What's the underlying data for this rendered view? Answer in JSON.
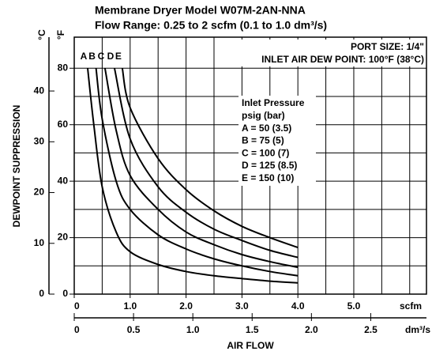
{
  "chart_data": {
    "type": "line",
    "title": "Membrane Dryer Model W07M-2AN-NNA",
    "subtitle": "Flow Range: 0.25 to 2 scfm (0.1 to 1.0 dm³/s)",
    "xlabel": "AIR FLOW",
    "ylabel": "DEWPOINT SUPPRESSION",
    "yunit": "°F",
    "y2unit": "°C",
    "xunit": "scfm",
    "x2unit": "dm³/s",
    "xlim": [
      0,
      6.3
    ],
    "xticks": [
      0,
      {
        "value": 1,
        "label": "1.0"
      },
      {
        "value": 2,
        "label": "2.0"
      },
      {
        "value": 3,
        "label": "3.0"
      },
      {
        "value": 4,
        "label": "4.0"
      },
      {
        "value": 5,
        "label": "5.0"
      }
    ],
    "xgrid": [
      0.5,
      1,
      1.5,
      2,
      2.5,
      3,
      3.5,
      4,
      4.5,
      5,
      5.5,
      6
    ],
    "x2lim": [
      0,
      2.97
    ],
    "x2ticks": [
      0,
      0.5,
      {
        "value": 1,
        "label": "1.0"
      },
      1.5,
      {
        "value": 2,
        "label": "2.0"
      },
      2.5
    ],
    "ylim": [
      0,
      91
    ],
    "yticks": [
      0,
      20,
      40,
      60,
      80
    ],
    "ygrid": [
      10,
      20,
      30,
      40,
      50,
      60,
      70,
      80
    ],
    "y2lim": [
      0,
      50.6
    ],
    "y2ticks": [
      0,
      10,
      20,
      30,
      40
    ],
    "grid": true,
    "annotations": [
      "PORT SIZE: 1/4\"",
      "INLET AIR DEW POINT: 100°F (38°C)"
    ],
    "legend_text": [
      "Inlet Pressure",
      "psig (bar)",
      "A = 50 (3.5)",
      "B = 75 (5)",
      "C = 100 (7)",
      "D = 125 (8.5)",
      "E = 150 (10)"
    ],
    "series": [
      {
        "name": "A",
        "color": "#000000",
        "x": [
          0.24,
          0.35,
          0.5,
          0.75,
          1,
          1.5,
          2,
          2.5,
          3,
          3.5,
          4
        ],
        "values": [
          80,
          60,
          38,
          22,
          15,
          10.5,
          8,
          6.5,
          5.5,
          4.6,
          4
        ]
      },
      {
        "name": "B",
        "color": "#000000",
        "x": [
          0.39,
          0.5,
          0.75,
          1,
          1.5,
          2,
          2.5,
          3,
          3.5,
          4
        ],
        "values": [
          80,
          62,
          40,
          30,
          21,
          16,
          12.5,
          10,
          8,
          6.5
        ]
      },
      {
        "name": "C",
        "color": "#000000",
        "x": [
          0.55,
          0.75,
          1,
          1.5,
          2,
          2.5,
          3,
          3.5,
          4
        ],
        "values": [
          80,
          58,
          42,
          30,
          22,
          17.5,
          14,
          11.5,
          9.5
        ]
      },
      {
        "name": "D",
        "color": "#000000",
        "x": [
          0.72,
          1,
          1.5,
          2,
          2.5,
          3,
          3.5,
          4
        ],
        "values": [
          80,
          55,
          38,
          29,
          23,
          19,
          15.5,
          13
        ]
      },
      {
        "name": "E",
        "color": "#000000",
        "x": [
          0.86,
          1,
          1.5,
          2,
          2.5,
          3,
          3.5,
          4
        ],
        "values": [
          80,
          66,
          48,
          37,
          29.5,
          24,
          20,
          16.5
        ]
      }
    ]
  }
}
